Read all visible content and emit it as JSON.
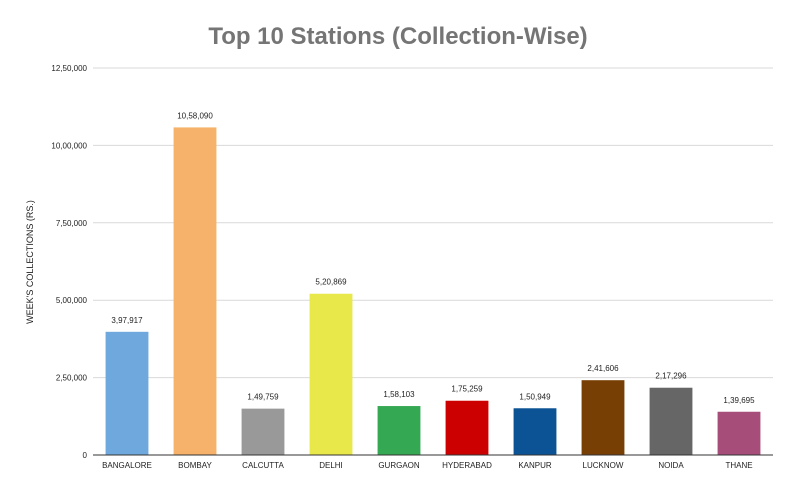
{
  "chart_data": {
    "type": "bar",
    "title": "Top 10 Stations (Collection-Wise)",
    "xlabel": "",
    "ylabel": "WEEK'S COLLECTIONS (RS.)",
    "ylim": [
      0,
      1250000
    ],
    "yticks": [
      {
        "value": 0,
        "label": "0"
      },
      {
        "value": 250000,
        "label": "2,50,000"
      },
      {
        "value": 500000,
        "label": "5,00,000"
      },
      {
        "value": 750000,
        "label": "7,50,000"
      },
      {
        "value": 1000000,
        "label": "10,00,000"
      },
      {
        "value": 1250000,
        "label": "12,50,000"
      }
    ],
    "grid": true,
    "legend": "none",
    "bars": [
      {
        "category": "BANGALORE",
        "value": 397917,
        "label": "3,97,917",
        "color": "#6fa8dc"
      },
      {
        "category": "BOMBAY",
        "value": 1058090,
        "label": "10,58,090",
        "color": "#f6b26b"
      },
      {
        "category": "CALCUTTA",
        "value": 149759,
        "label": "1,49,759",
        "color": "#999999"
      },
      {
        "category": "DELHI",
        "value": 520869,
        "label": "5,20,869",
        "color": "#e8e84a"
      },
      {
        "category": "GURGAON",
        "value": 158103,
        "label": "1,58,103",
        "color": "#34a853"
      },
      {
        "category": "HYDERABAD",
        "value": 175259,
        "label": "1,75,259",
        "color": "#cc0000"
      },
      {
        "category": "KANPUR",
        "value": 150949,
        "label": "1,50,949",
        "color": "#0b5394"
      },
      {
        "category": "LUCKNOW",
        "value": 241606,
        "label": "2,41,606",
        "color": "#783f04"
      },
      {
        "category": "NOIDA",
        "value": 217296,
        "label": "2,17,296",
        "color": "#666666"
      },
      {
        "category": "THANE",
        "value": 139695,
        "label": "1,39,695",
        "color": "#a64d79"
      }
    ]
  }
}
